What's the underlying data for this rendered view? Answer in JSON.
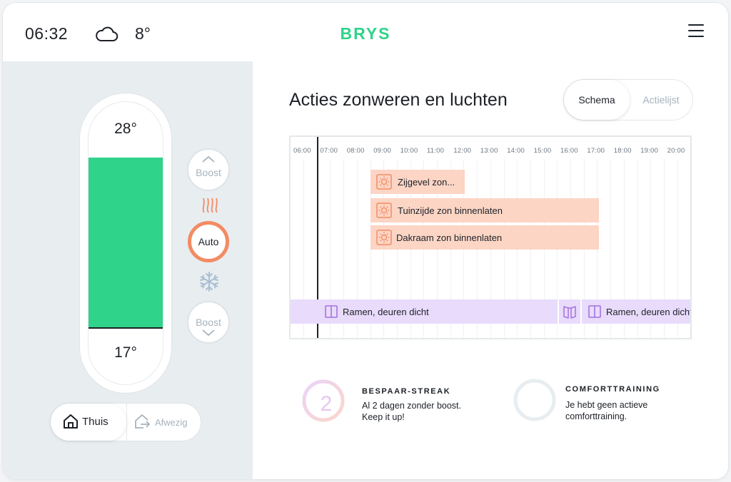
{
  "header": {
    "time": "06:32",
    "weather_icon": "cloud-icon",
    "outside_temp": "8°",
    "brand": "BRYS",
    "menu_icon": "hamburger-menu-icon"
  },
  "thermostat": {
    "max_temp": "28°",
    "min_temp": "17°",
    "fill_color": "#2fd38a",
    "boost_up_label": "Boost",
    "boost_down_label": "Boost",
    "heat_icon": "heat-waves-icon",
    "mode_label": "Auto",
    "cool_icon": "snowflake-icon"
  },
  "presence": {
    "home_label": "Thuis",
    "home_icon": "house-icon",
    "away_label": "Afwezig",
    "away_icon": "house-exit-icon",
    "selected": "Thuis"
  },
  "main": {
    "title": "Acties zonweren en luchten",
    "tabs": [
      {
        "label": "Schema",
        "active": true
      },
      {
        "label": "Actielijst",
        "active": false
      }
    ]
  },
  "timeline": {
    "hours": [
      "06:00",
      "07:00",
      "08:00",
      "09:00",
      "10:00",
      "11:00",
      "12:00",
      "13:00",
      "14:00",
      "15:00",
      "16:00",
      "17:00",
      "18:00",
      "19:00",
      "20:00"
    ],
    "sun_actions": [
      {
        "label": "Zijgevel zon...",
        "icon": "sun-icon",
        "start": "09:00",
        "end": "12:30"
      },
      {
        "label": "Tuinzijde zon binnenlaten",
        "icon": "sun-icon",
        "start": "09:00",
        "end": "17:30"
      },
      {
        "label": "Dakraam zon binnenlaten",
        "icon": "sun-icon",
        "start": "09:00",
        "end": "17:30"
      }
    ],
    "window_actions": [
      {
        "label": "Ramen, deuren dicht",
        "icon": "window-closed-icon",
        "start": "06:00",
        "end": "16:40"
      },
      {
        "label": "",
        "icon": "window-open-icon",
        "start": "16:40",
        "end": "17:30"
      },
      {
        "label": "Ramen, deuren dicht",
        "icon": "window-closed-icon",
        "start": "17:30",
        "end": "20:30"
      }
    ],
    "sun_color": "#fcd5c5",
    "window_color": "#e9dbfb"
  },
  "cards": {
    "streak": {
      "title": "BESPAAR-STREAK",
      "number": "2",
      "text": "Al 2 dagen zonder boost. Keep it up!"
    },
    "comfort": {
      "title": "COMFORTTRAINING",
      "text": "Je hebt geen actieve comforttraining."
    }
  },
  "colors": {
    "brand_green": "#2fd38a",
    "accent_orange": "#f38b63",
    "muted_text": "#a7b3bd"
  }
}
